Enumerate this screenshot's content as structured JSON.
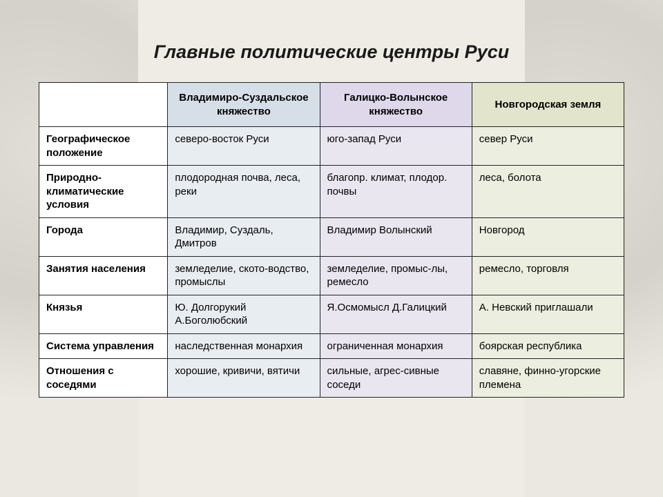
{
  "title": "Главные политические центры Руси",
  "columns": [
    "",
    "Владимиро-Суздальское княжество",
    "Галицко-Волынское княжество",
    "Новгородская земля"
  ],
  "column_bg": [
    "#ffffff",
    "#e8edf2",
    "#eae6f0",
    "#eceee0"
  ],
  "header_bg": [
    "#ffffff",
    "#d6dfe8",
    "#ded8ea",
    "#e2e4cc"
  ],
  "row_labels": [
    "Географическое положение",
    "Природно-климатические условия",
    "Города",
    "Занятия населения",
    "Князья",
    "Система управления",
    "Отношения с соседями"
  ],
  "rows": [
    [
      "северо-восток Руси",
      "юго-запад Руси",
      "север Руси"
    ],
    [
      "плодородная почва, леса, реки",
      "благопр. климат, плодор. почвы",
      "леса, болота"
    ],
    [
      "Владимир, Суздаль, Дмитров",
      "Владимир Волынский",
      "Новгород"
    ],
    [
      "земледелие, ското-водство, промыслы",
      "земледелие, промыс-лы, ремесло",
      "ремесло, торговля"
    ],
    [
      "Ю. Долгорукий А.Боголюбский",
      "Я.Осмомысл Д.Галицкий",
      "А. Невский приглашали"
    ],
    [
      "наследственная монархия",
      "ограниченная монархия",
      "боярская республика"
    ],
    [
      "хорошие, кривичи, вятичи",
      "сильные, агрес-сивные соседи",
      "славяне, финно-угорские племена"
    ]
  ],
  "title_fontsize": 27,
  "cell_fontsize": 15,
  "border_color": "#222222",
  "slide_bg": "#efece5"
}
